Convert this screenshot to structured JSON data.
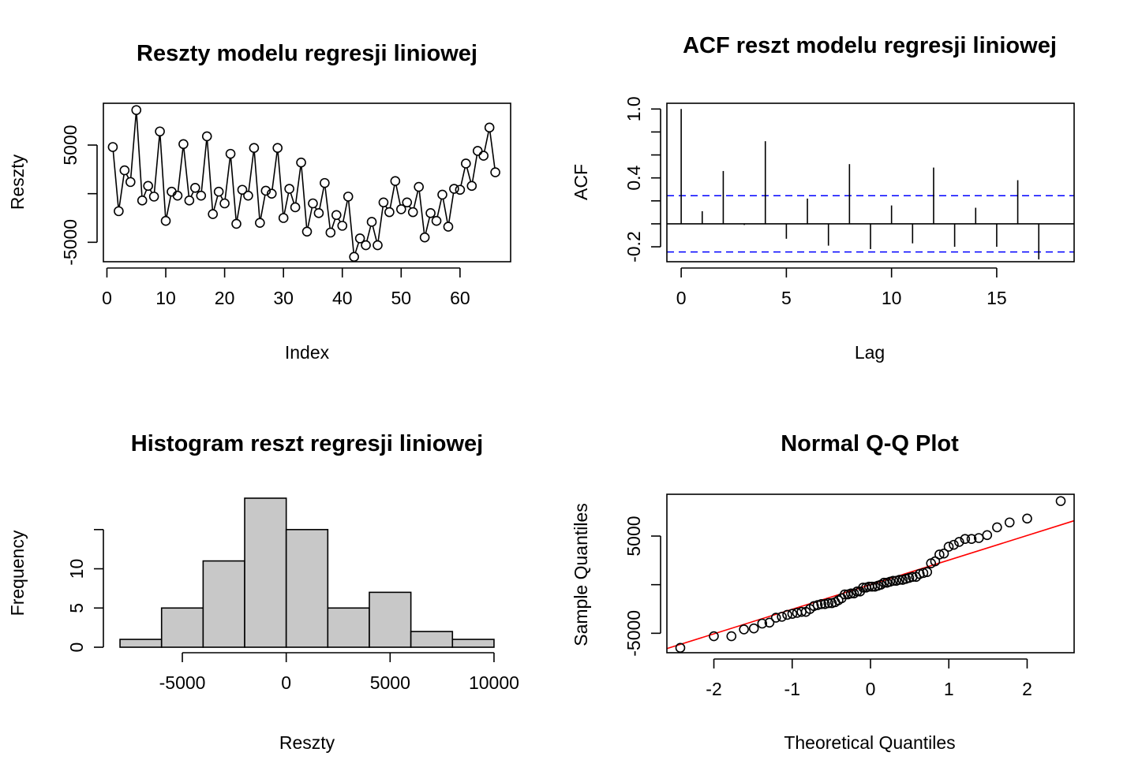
{
  "chart_data": [
    {
      "type": "line",
      "title": "Reszty modelu regresji liniowej",
      "xlabel": "Index",
      "ylabel": "Reszty",
      "xlim": [
        -0.6,
        68.6
      ],
      "ylim": [
        -7000,
        9300
      ],
      "xticks": [
        0,
        10,
        20,
        30,
        40,
        50,
        60
      ],
      "xtick_labels": [
        "0",
        "10",
        "20",
        "30",
        "40",
        "50",
        "60"
      ],
      "yticks": [
        -5000,
        0,
        5000
      ],
      "ytick_labels": [
        "-5000",
        "",
        "5000"
      ],
      "points_style": "open-circle-line",
      "x": [
        1,
        2,
        3,
        4,
        5,
        6,
        7,
        8,
        9,
        10,
        11,
        12,
        13,
        14,
        15,
        16,
        17,
        18,
        19,
        20,
        21,
        22,
        23,
        24,
        25,
        26,
        27,
        28,
        29,
        30,
        31,
        32,
        33,
        34,
        35,
        36,
        37,
        38,
        39,
        40,
        41,
        42,
        43,
        44,
        45,
        46,
        47,
        48,
        49,
        50,
        51,
        52,
        53,
        54,
        55,
        56,
        57,
        58,
        59,
        60,
        61,
        62,
        63,
        64,
        65,
        66
      ],
      "y": [
        4800,
        -1800,
        2400,
        1200,
        8600,
        -700,
        800,
        -300,
        6400,
        -2800,
        200,
        -200,
        5100,
        -700,
        600,
        -200,
        5900,
        -2100,
        200,
        -1000,
        4100,
        -3100,
        400,
        -200,
        4700,
        -3000,
        300,
        0,
        4700,
        -2500,
        500,
        -1400,
        3200,
        -3900,
        -1000,
        -2000,
        1100,
        -4000,
        -2200,
        -3300,
        -300,
        -6500,
        -4600,
        -5300,
        -2900,
        -5300,
        -900,
        -1900,
        1300,
        -1600,
        -900,
        -1900,
        700,
        -4500,
        -2000,
        -2800,
        -100,
        -3400,
        500,
        400,
        3100,
        800,
        4400,
        3900,
        6800,
        2200
      ]
    },
    {
      "type": "bar",
      "title": "ACF reszt modelu regresji liniowej",
      "xlabel": "Lag",
      "ylabel": "ACF",
      "xlim": [
        -0.68,
        18.68
      ],
      "ylim": [
        -0.33,
        1.05
      ],
      "xticks": [
        0,
        5,
        10,
        15
      ],
      "xtick_labels": [
        "0",
        "5",
        "10",
        "15"
      ],
      "yticks": [
        -0.2,
        0.0,
        0.2,
        0.4,
        0.6,
        0.8,
        1.0
      ],
      "ytick_labels": [
        "-0.2",
        "",
        "",
        "0.4",
        "",
        "",
        "1.0"
      ],
      "confidence_bound": 0.245,
      "confidence_color": "#0000ff",
      "lags": [
        0,
        1,
        2,
        3,
        4,
        5,
        6,
        7,
        8,
        9,
        10,
        11,
        12,
        13,
        14,
        15,
        16,
        17,
        18
      ],
      "values": [
        1.0,
        0.11,
        0.46,
        -0.01,
        0.72,
        -0.13,
        0.22,
        -0.19,
        0.52,
        -0.22,
        0.16,
        -0.17,
        0.49,
        -0.2,
        0.14,
        -0.2,
        0.38,
        -0.31,
        0.0
      ]
    },
    {
      "type": "bar",
      "title": "Histogram reszt regresji liniowej",
      "xlabel": "Reszty",
      "ylabel": "Frequency",
      "xlim": [
        -8800,
        10800
      ],
      "ylim": [
        -0.7,
        19.5
      ],
      "xticks": [
        -5000,
        0,
        5000,
        10000
      ],
      "xtick_labels": [
        "-5000",
        "0",
        "5000",
        "10000"
      ],
      "yticks": [
        0,
        5,
        10,
        15
      ],
      "ytick_labels": [
        "0",
        "5",
        "10",
        ""
      ],
      "bar_color": "#c8c8c8",
      "bin_edges": [
        -8000,
        -6000,
        -4000,
        -2000,
        0,
        2000,
        4000,
        6000,
        8000,
        10000
      ],
      "values": [
        1,
        5,
        11,
        19,
        15,
        5,
        7,
        2,
        1
      ]
    },
    {
      "type": "scatter",
      "title": "Normal Q-Q Plot",
      "xlabel": "Theoretical Quantiles",
      "ylabel": "Sample Quantiles",
      "xlim": [
        -2.6,
        2.6
      ],
      "ylim": [
        -7000,
        9300
      ],
      "xticks": [
        -2,
        -1,
        0,
        1,
        2
      ],
      "xtick_labels": [
        "-2",
        "-1",
        "0",
        "1",
        "2"
      ],
      "yticks": [
        -5000,
        0,
        5000
      ],
      "ytick_labels": [
        "-5000",
        "",
        "5000"
      ],
      "line_color": "#ff0000",
      "reference_line": {
        "intercept": 0,
        "slope": 2530
      },
      "points_style": "open-circle"
    }
  ]
}
